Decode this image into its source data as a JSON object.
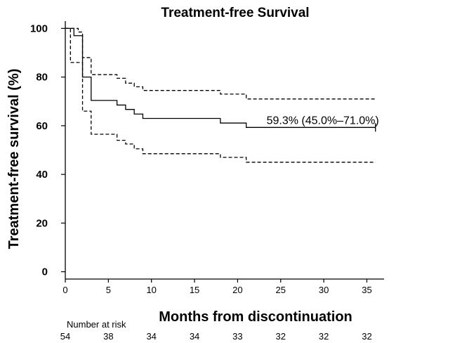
{
  "chart_data": {
    "type": "line",
    "subtype": "kaplan-meier",
    "title": "Treatment-free Survival",
    "xlabel": "Months from discontinuation",
    "ylabel": "Treatment-free survival (%)",
    "xlim": [
      0,
      37
    ],
    "ylim": [
      -3,
      103
    ],
    "x_ticks": [
      0,
      5,
      10,
      15,
      20,
      25,
      30,
      35
    ],
    "y_ticks": [
      0,
      20,
      40,
      60,
      80,
      100
    ],
    "grid": false,
    "series": [
      {
        "role": "estimate",
        "style": "solid",
        "steps": [
          [
            0,
            100
          ],
          [
            1,
            100
          ],
          [
            1,
            97
          ],
          [
            2,
            97
          ],
          [
            2,
            80
          ],
          [
            3,
            80
          ],
          [
            3,
            70.4
          ],
          [
            6,
            70.4
          ],
          [
            6,
            68.5
          ],
          [
            7,
            68.5
          ],
          [
            7,
            66.7
          ],
          [
            8,
            66.7
          ],
          [
            8,
            64.8
          ],
          [
            9,
            64.8
          ],
          [
            9,
            63
          ],
          [
            18,
            63
          ],
          [
            18,
            61.1
          ],
          [
            21,
            61.1
          ],
          [
            21,
            59.3
          ],
          [
            36,
            59.3
          ]
        ]
      },
      {
        "role": "upper-ci",
        "style": "dashed",
        "steps": [
          [
            0,
            100
          ],
          [
            1.5,
            100
          ],
          [
            1.5,
            98.5
          ],
          [
            2,
            98.5
          ],
          [
            2,
            88
          ],
          [
            3,
            88
          ],
          [
            3,
            81
          ],
          [
            6,
            81
          ],
          [
            6,
            79.5
          ],
          [
            7,
            79.5
          ],
          [
            7,
            77.5
          ],
          [
            8,
            77.5
          ],
          [
            8,
            76
          ],
          [
            9,
            76
          ],
          [
            9,
            74.5
          ],
          [
            18,
            74.5
          ],
          [
            18,
            73
          ],
          [
            21,
            73
          ],
          [
            21,
            71
          ],
          [
            36,
            71
          ]
        ]
      },
      {
        "role": "lower-ci",
        "style": "dashed",
        "steps": [
          [
            0,
            100
          ],
          [
            0.6,
            100
          ],
          [
            0.6,
            86
          ],
          [
            2,
            86
          ],
          [
            2,
            66
          ],
          [
            3,
            66
          ],
          [
            3,
            56.5
          ],
          [
            6,
            56.5
          ],
          [
            6,
            54
          ],
          [
            7,
            54
          ],
          [
            7,
            52.5
          ],
          [
            8,
            52.5
          ],
          [
            8,
            50.5
          ],
          [
            9,
            50.5
          ],
          [
            9,
            48.5
          ],
          [
            18,
            48.5
          ],
          [
            18,
            47
          ],
          [
            21,
            47
          ],
          [
            21,
            45
          ],
          [
            36,
            45
          ]
        ]
      }
    ],
    "censor_marks": [
      {
        "x": 36,
        "y": 59.3
      }
    ],
    "annotations": [
      {
        "text": "59.3% (45.0%–71.0%)",
        "x": 36,
        "y": 59.3
      }
    ],
    "risk_table": {
      "label": "Number at risk",
      "times": [
        0,
        5,
        10,
        15,
        20,
        25,
        30,
        35
      ],
      "counts": [
        54,
        38,
        34,
        34,
        33,
        32,
        32,
        32
      ]
    }
  }
}
